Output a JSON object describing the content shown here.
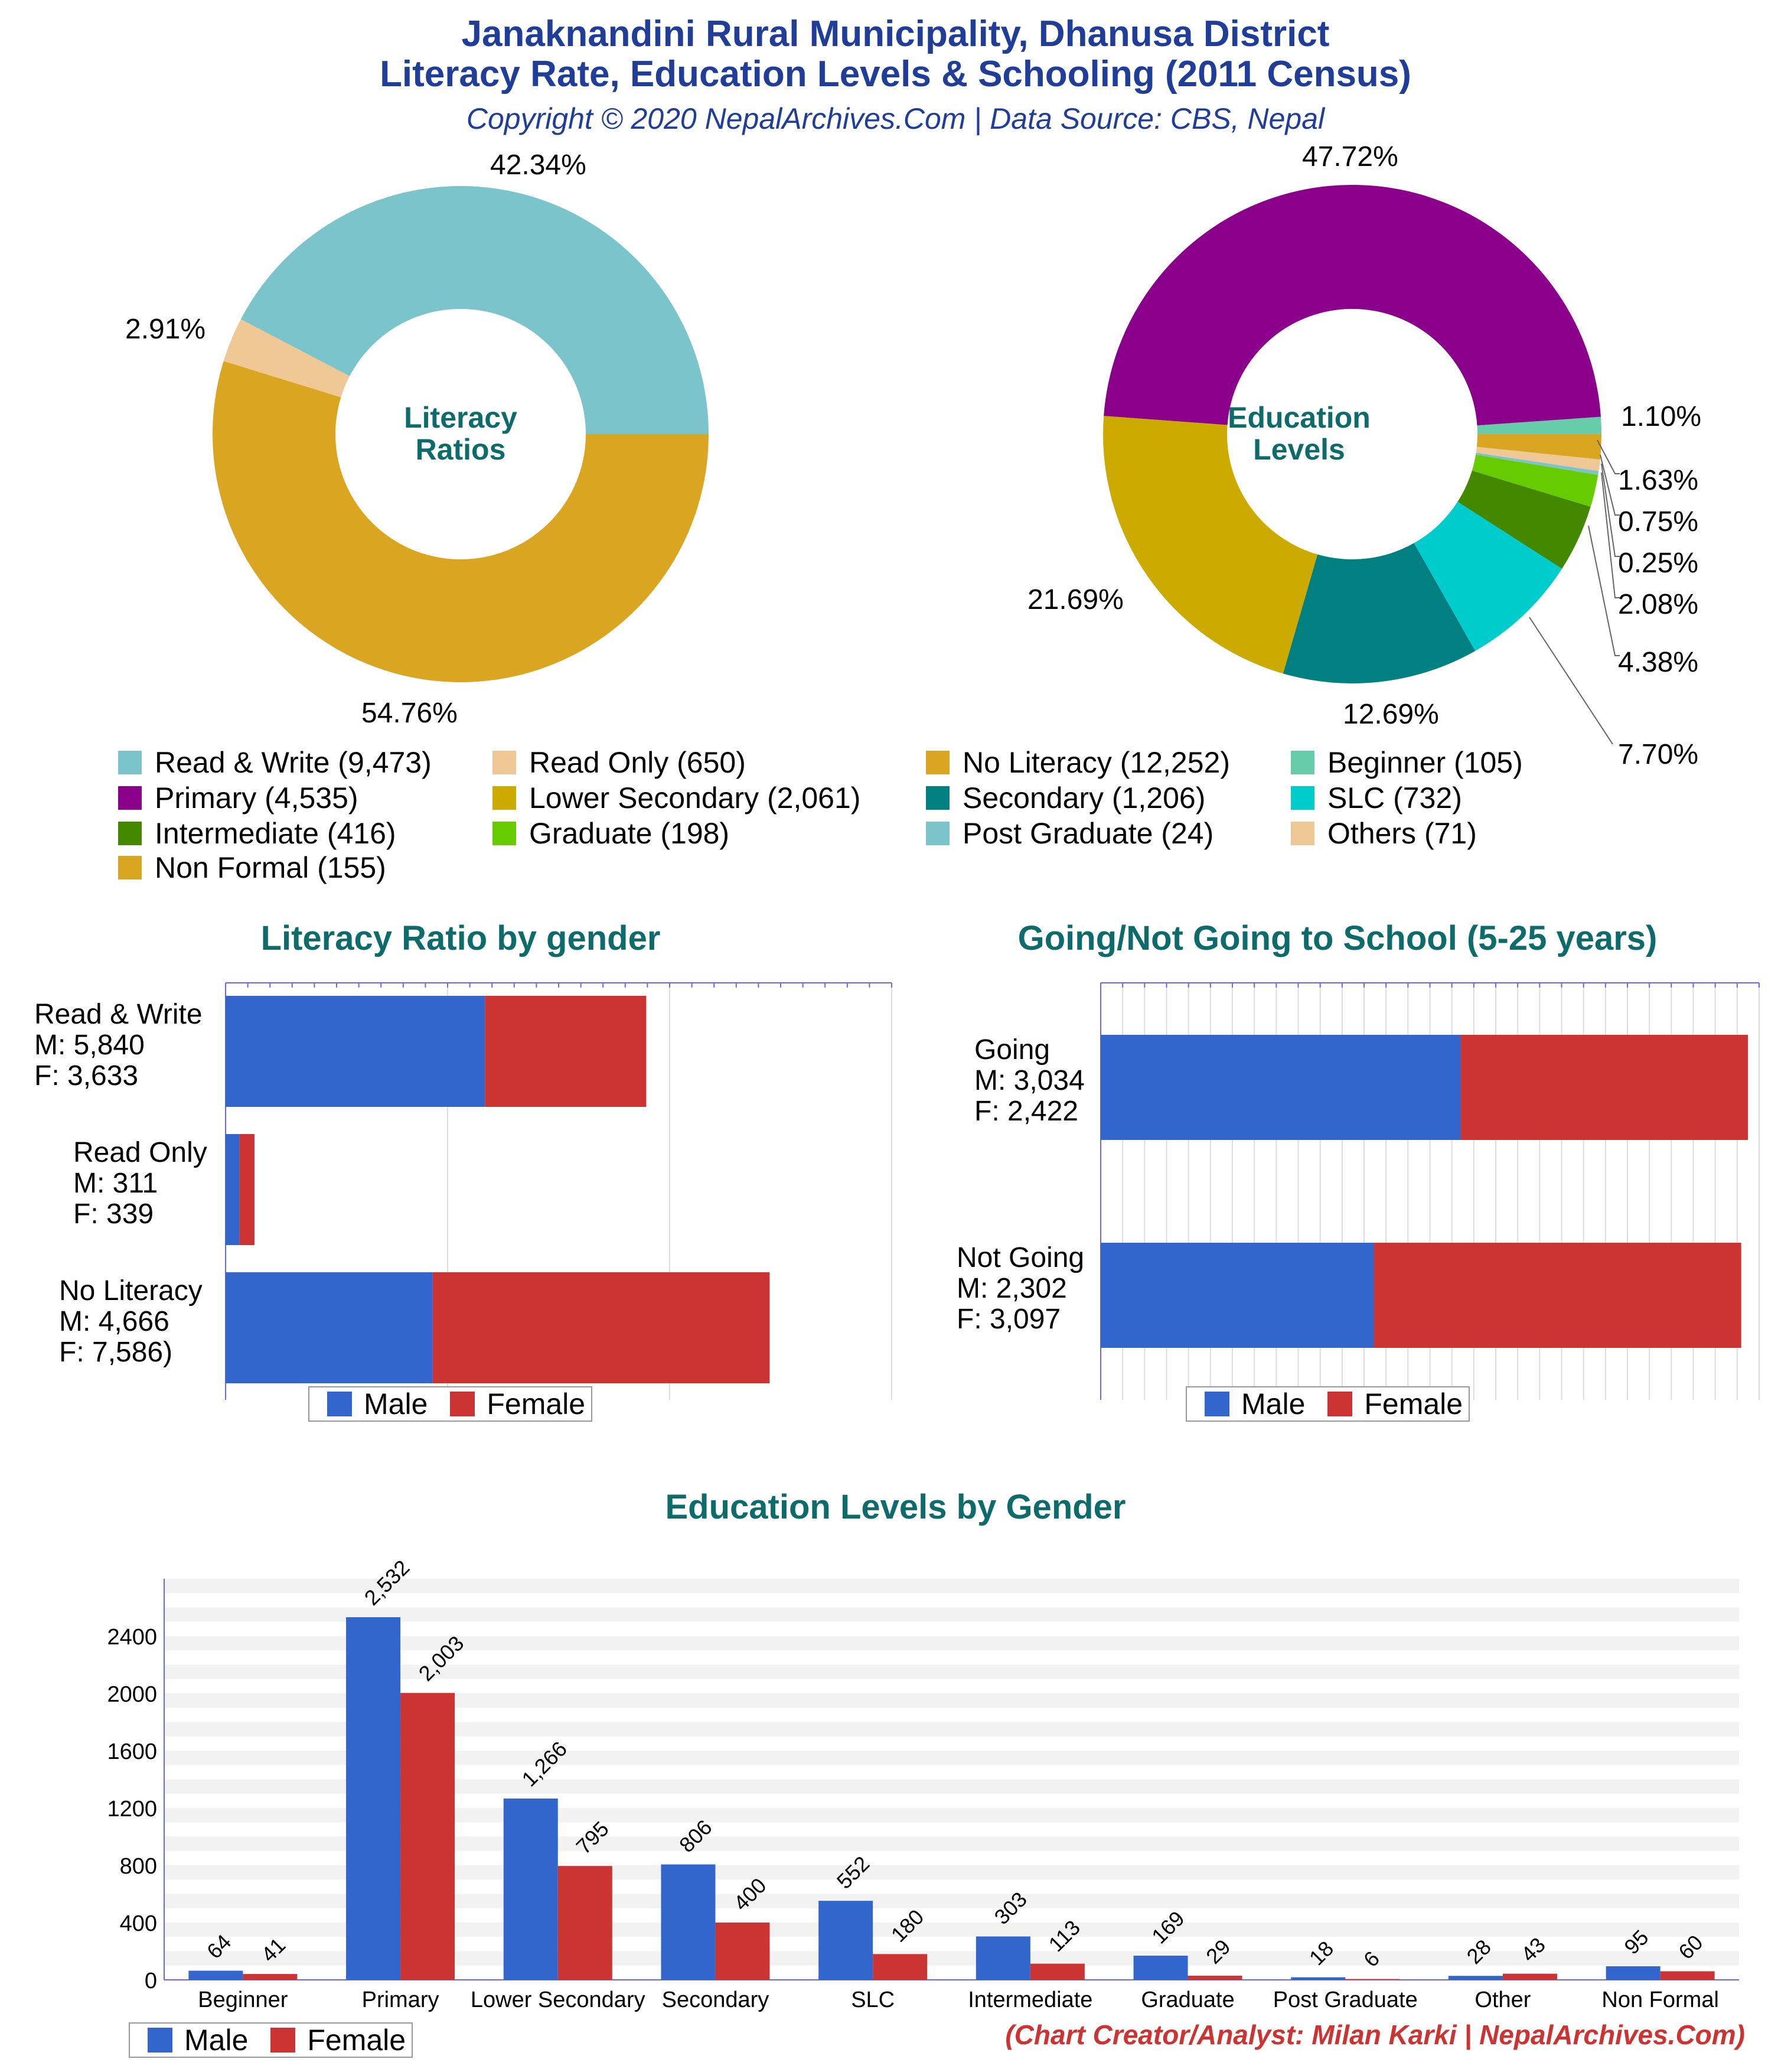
{
  "header": {
    "title_line1": "Janaknandini Rural Municipality, Dhanusa District",
    "title_line2": "Literacy Rate, Education Levels & Schooling (2011 Census)",
    "subtitle": "Copyright © 2020 NepalArchives.Com | Data Source: CBS, Nepal"
  },
  "colors": {
    "read_write": "#7bc4cc",
    "read_only": "#f0c896",
    "no_literacy": "#daa520",
    "beginner": "#66ccaa",
    "primary": "#8b008b",
    "lower_secondary": "#ccaa00",
    "secondary": "#008080",
    "slc": "#00cccc",
    "intermediate": "#448800",
    "graduate": "#66cc00",
    "post_graduate": "#7bc4cc",
    "others": "#f0c896",
    "non_formal": "#daa520",
    "male": "#3366cc",
    "female": "#cc3333"
  },
  "donut_literacy": {
    "center_line1": "Literacy",
    "center_line2": "Ratios",
    "pct_read_write": "42.34%",
    "pct_read_only": "2.91%",
    "pct_no_literacy": "54.76%"
  },
  "donut_education": {
    "center_line1": "Education",
    "center_line2": "Levels",
    "pct_primary": "47.72%",
    "pct_beginner": "1.10%",
    "pct_non_formal": "1.63%",
    "pct_others": "0.75%",
    "pct_post_graduate": "0.25%",
    "pct_graduate": "2.08%",
    "pct_intermediate": "4.38%",
    "pct_slc": "7.70%",
    "pct_secondary": "12.69%",
    "pct_lower_secondary": "21.69%"
  },
  "legend": [
    {
      "label": "Read & Write (9,473)",
      "color": "#7bc4cc"
    },
    {
      "label": "Read Only (650)",
      "color": "#f0c896"
    },
    {
      "label": "No Literacy (12,252)",
      "color": "#daa520"
    },
    {
      "label": "Beginner (105)",
      "color": "#66ccaa"
    },
    {
      "label": "Primary (4,535)",
      "color": "#8b008b"
    },
    {
      "label": "Lower Secondary (2,061)",
      "color": "#ccaa00"
    },
    {
      "label": "Secondary (1,206)",
      "color": "#008080"
    },
    {
      "label": "SLC (732)",
      "color": "#00cccc"
    },
    {
      "label": "Intermediate (416)",
      "color": "#448800"
    },
    {
      "label": "Graduate (198)",
      "color": "#66cc00"
    },
    {
      "label": "Post Graduate (24)",
      "color": "#7bc4cc"
    },
    {
      "label": "Others (71)",
      "color": "#f0c896"
    },
    {
      "label": "Non Formal (155)",
      "color": "#daa520"
    }
  ],
  "literacy_gender": {
    "title": "Literacy Ratio by gender",
    "labels": [
      "Read & Write\nM: 5,840\nF: 3,633",
      "Read Only\nM: 311\nF: 339",
      "No Literacy\nM: 4,666\nF: 7,586)"
    ],
    "legend_male": "Male",
    "legend_female": "Female"
  },
  "school_gender": {
    "title": "Going/Not Going to School (5-25 years)",
    "labels": [
      "Going\nM: 3,034\nF: 2,422",
      "Not Going\nM: 2,302\nF: 3,097"
    ],
    "legend_male": "Male",
    "legend_female": "Female"
  },
  "education_gender": {
    "title": "Education Levels by Gender",
    "legend_male": "Male",
    "legend_female": "Female"
  },
  "credit": "(Chart Creator/Analyst: Milan Karki | NepalArchives.Com)",
  "chart_data": [
    {
      "type": "pie",
      "center_label": "Literacy Ratios",
      "labels": [
        "Read & Write",
        "Read Only",
        "No Literacy"
      ],
      "values": [
        9473,
        650,
        12252
      ],
      "percent_labels": [
        "42.34%",
        "2.91%",
        "54.76%"
      ]
    },
    {
      "type": "pie",
      "center_label": "Education Levels",
      "labels": [
        "Beginner",
        "Primary",
        "Lower Secondary",
        "Secondary",
        "SLC",
        "Intermediate",
        "Graduate",
        "Post Graduate",
        "Others",
        "Non Formal"
      ],
      "values": [
        105,
        4535,
        2061,
        1206,
        732,
        416,
        198,
        24,
        71,
        155
      ],
      "percent_labels": [
        "1.10%",
        "47.72%",
        "21.69%",
        "12.69%",
        "7.70%",
        "4.38%",
        "2.08%",
        "0.25%",
        "0.75%",
        "1.63%"
      ]
    },
    {
      "type": "bar",
      "orientation": "horizontal",
      "stacked": true,
      "title": "Literacy Ratio by gender",
      "categories": [
        "Read & Write",
        "Read Only",
        "No Literacy"
      ],
      "series": [
        {
          "name": "Male",
          "values": [
            5840,
            311,
            4666
          ]
        },
        {
          "name": "Female",
          "values": [
            3633,
            339,
            7586
          ]
        }
      ],
      "xlim": [
        0,
        15000
      ],
      "legend": "bottom"
    },
    {
      "type": "bar",
      "orientation": "horizontal",
      "stacked": true,
      "title": "Going/Not Going to School (5-25 years)",
      "categories": [
        "Going",
        "Not Going"
      ],
      "series": [
        {
          "name": "Male",
          "values": [
            3034,
            2302
          ]
        },
        {
          "name": "Female",
          "values": [
            2422,
            3097
          ]
        }
      ],
      "xlim": [
        0,
        5550
      ],
      "legend": "bottom"
    },
    {
      "type": "bar",
      "title": "Education Levels by Gender",
      "categories": [
        "Beginner",
        "Primary",
        "Lower Secondary",
        "Secondary",
        "SLC",
        "Intermediate",
        "Graduate",
        "Post Graduate",
        "Other",
        "Non Formal"
      ],
      "series": [
        {
          "name": "Male",
          "values": [
            64,
            2532,
            1266,
            806,
            552,
            303,
            169,
            18,
            28,
            95
          ],
          "labels": [
            "64",
            "2,532",
            "1,266",
            "806",
            "552",
            "303",
            "169",
            "18",
            "28",
            "95"
          ]
        },
        {
          "name": "Female",
          "values": [
            41,
            2003,
            795,
            400,
            180,
            113,
            29,
            6,
            43,
            60
          ],
          "labels": [
            "41",
            "2,003",
            "795",
            "400",
            "180",
            "113",
            "29",
            "6",
            "43",
            "60"
          ]
        }
      ],
      "yticks": [
        0,
        400,
        800,
        1200,
        1600,
        2000,
        2400
      ],
      "ylim": [
        0,
        2800
      ],
      "grid": true,
      "legend": "bottom-left"
    }
  ]
}
